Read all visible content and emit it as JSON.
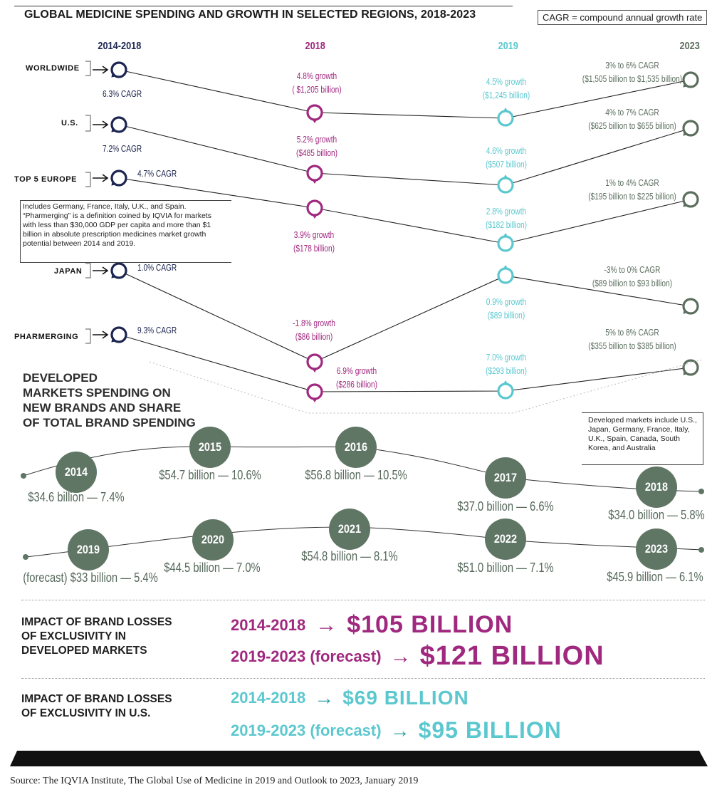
{
  "title": "GLOBAL MEDICINE SPENDING AND GROWTH IN SELECTED REGIONS, 2018-2023",
  "cagr_note": "CAGR = compound annual growth rate",
  "colors": {
    "navy": "#1c2450",
    "magenta": "#a0287f",
    "teal": "#5bc8cf",
    "green": "#5b6e5e",
    "circle": "#607665"
  },
  "chart_data": [
    {
      "type": "line",
      "title": "GLOBAL MEDICINE SPENDING AND GROWTH IN SELECTED REGIONS, 2018-2023",
      "categories": [
        "2014-2018",
        "2018",
        "2019",
        "2023"
      ],
      "series": [
        {
          "name": "WORLDWIDE",
          "labels": [
            "6.3% CAGR",
            "4.8% growth ( $1,205 billion)",
            "4.5% growth ($1,245 billion)",
            "3% to 6% CAGR ($1,505 billion to $1,535 billion)"
          ]
        },
        {
          "name": "U.S.",
          "labels": [
            "7.2% CAGR",
            "5.2% growth ($485 billion)",
            "4.6% growth ($507 billion)",
            "4% to 7% CAGR ($625 billion to $655 billion)"
          ]
        },
        {
          "name": "TOP 5 EUROPE",
          "labels": [
            "4.7% CAGR",
            "3.9% growth ($178 billion)",
            "2.8% growth ($182 billion)",
            "1% to 4% CAGR ($195 billion to $225 billion)"
          ]
        },
        {
          "name": "JAPAN",
          "labels": [
            "1.0% CAGR",
            "-1.8% growth ($86 billion)",
            "0.9% growth ($89 billion)",
            "-3% to 0% CAGR ($89 billion to $93 billion)"
          ]
        },
        {
          "name": "PHARMERGING",
          "labels": [
            "9.3% CAGR",
            "6.9% growth ($286 billion)",
            "7.0% growth ($293 billion)",
            "5% to 8% CAGR ($355 billion to $385 billion)"
          ]
        }
      ]
    },
    {
      "type": "line",
      "title": "DEVELOPED MARKETS SPENDING ON NEW BRANDS AND SHARE OF TOTAL BRAND SPENDING",
      "categories": [
        "2014",
        "2015",
        "2016",
        "2017",
        "2018",
        "2019",
        "2020",
        "2021",
        "2022",
        "2023"
      ],
      "series": [
        {
          "name": "Spending ($ billion)",
          "values": [
            34.6,
            54.7,
            56.8,
            37.0,
            34.0,
            33,
            44.5,
            54.8,
            51.0,
            45.9
          ]
        },
        {
          "name": "Share of total brand spending (%)",
          "values": [
            7.4,
            10.6,
            10.5,
            6.6,
            5.8,
            5.4,
            7.0,
            8.1,
            7.1,
            6.1
          ]
        }
      ]
    }
  ],
  "region_chart": {
    "columns": [
      "2014-2018",
      "2018",
      "2019",
      "2023"
    ],
    "rows": [
      {
        "label": "WORLDWIDE",
        "cagr": "6.3% CAGR",
        "g18": [
          "4.8% growth",
          "( $1,205 billion)"
        ],
        "g19": [
          "4.5% growth",
          "($1,245 billion)"
        ],
        "g23": [
          "3% to 6% CAGR",
          "($1,505 billion to $1,535 billion)"
        ]
      },
      {
        "label": "U.S.",
        "cagr": "7.2% CAGR",
        "g18": [
          "5.2% growth",
          "($485 billion)"
        ],
        "g19": [
          "4.6% growth",
          "($507 billion)"
        ],
        "g23": [
          "4% to 7% CAGR",
          "($625 billion to $655 billion)"
        ]
      },
      {
        "label": "TOP 5 EUROPE",
        "cagr": "4.7% CAGR",
        "g18": [
          "3.9% growth",
          "($178 billion)"
        ],
        "g19": [
          "2.8% growth",
          "($182 billion)"
        ],
        "g23": [
          "1% to 4% CAGR",
          "($195 billion to $225 billion)"
        ]
      },
      {
        "label": "JAPAN",
        "cagr": "1.0% CAGR",
        "g18": [
          "-1.8% growth",
          "($86 billion)"
        ],
        "g19": [
          "0.9% growth",
          "($89 billion)"
        ],
        "g23": [
          "-3% to 0% CAGR",
          "($89 billion to $93 billion)"
        ]
      },
      {
        "label": "PHARMERGING",
        "cagr": "9.3% CAGR",
        "g18": [
          "6.9% growth",
          "($286 billion)"
        ],
        "g19": [
          "7.0% growth",
          "($293 billion)"
        ],
        "g23": [
          "5% to 8% CAGR",
          "($355 billion to $385 billion)"
        ]
      }
    ],
    "note": "Includes Germany, France, Italy, U.K., and Spain. “Pharmerging” is a definition coined by IQVIA for markets with less than $30,000 GDP per capita and more than $1 billion in absolute prescription medicines market growth potential between 2014 and 2019."
  },
  "brands": {
    "title": [
      "DEVELOPED",
      "MARKETS SPENDING ON",
      "NEW BRANDS AND SHARE",
      "OF TOTAL BRAND SPENDING"
    ],
    "note": "Developed markets include U.S., Japan, Germany, France, Italy, U.K., Spain, Canada, South Korea, and Australia",
    "years": [
      {
        "year": "2014",
        "label": "$34.6 billion — 7.4%"
      },
      {
        "year": "2015",
        "label": "$54.7 billion — 10.6%"
      },
      {
        "year": "2016",
        "label": "$56.8 billion — 10.5%"
      },
      {
        "year": "2017",
        "label": "$37.0 billion — 6.6%"
      },
      {
        "year": "2018",
        "label": "$34.0 billion — 5.8%"
      },
      {
        "year": "2019",
        "label": "(forecast) $33 billion — 5.4%"
      },
      {
        "year": "2020",
        "label": "$44.5 billion — 7.0%"
      },
      {
        "year": "2021",
        "label": "$54.8 billion — 8.1%"
      },
      {
        "year": "2022",
        "label": "$51.0 billion — 7.1%"
      },
      {
        "year": "2023",
        "label": "$45.9 billion — 6.1%"
      }
    ]
  },
  "impact_developed": {
    "title": [
      "IMPACT OF BRAND LOSSES",
      "OF EXCLUSIVITY IN",
      "DEVELOPED MARKETS"
    ],
    "p1": "2014-2018",
    "v1": "$105 BILLION",
    "p2": "2019-2023 (forecast)",
    "v2": "$121 BILLION"
  },
  "impact_us": {
    "title": [
      "IMPACT OF BRAND LOSSES",
      "OF EXCLUSIVITY IN U.S."
    ],
    "p1": "2014-2018",
    "v1": "$69 BILLION",
    "p2": "2019-2023 (forecast)",
    "v2": "$95 BILLION"
  },
  "source": "Source: The IQVIA Institute, The Global Use of Medicine in 2019 and Outlook to 2023, January 2019"
}
